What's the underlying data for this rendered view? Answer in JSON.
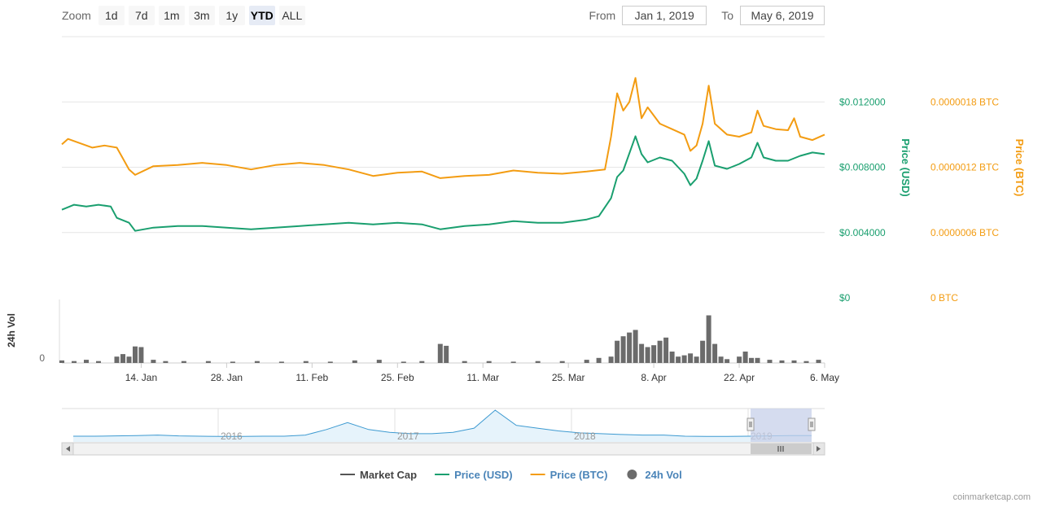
{
  "zoom": {
    "label": "Zoom",
    "buttons": [
      "1d",
      "7d",
      "1m",
      "3m",
      "1y",
      "YTD",
      "ALL"
    ],
    "active": "YTD"
  },
  "range": {
    "from_label": "From",
    "from_value": "Jan 1, 2019",
    "to_label": "To",
    "to_value": "May 6, 2019"
  },
  "credit": "coinmarketcap.com",
  "colors": {
    "usd": "#1a9f6f",
    "btc": "#f39c12",
    "volume": "#6b6b6b",
    "market_cap": "#555555",
    "navigator_line": "#3d9ad1"
  },
  "chart_data": {
    "type": "line",
    "x_axis": {
      "range": [
        "2019-01-01",
        "2019-05-06"
      ],
      "ticks": [
        {
          "date": "2019-01-14",
          "label": "14. Jan"
        },
        {
          "date": "2019-01-28",
          "label": "28. Jan"
        },
        {
          "date": "2019-02-11",
          "label": "11. Feb"
        },
        {
          "date": "2019-02-25",
          "label": "25. Feb"
        },
        {
          "date": "2019-03-11",
          "label": "11. Mar"
        },
        {
          "date": "2019-03-25",
          "label": "25. Mar"
        },
        {
          "date": "2019-04-08",
          "label": "8. Apr"
        },
        {
          "date": "2019-04-22",
          "label": "22. Apr"
        },
        {
          "date": "2019-05-06",
          "label": "6. May"
        }
      ]
    },
    "y_axis_usd": {
      "label": "Price (USD)",
      "range": [
        0,
        0.016
      ],
      "ticks": [
        {
          "value": 0,
          "label": "$0"
        },
        {
          "value": 0.004,
          "label": "$0.004000"
        },
        {
          "value": 0.008,
          "label": "$0.008000"
        },
        {
          "value": 0.012,
          "label": "$0.012000"
        }
      ]
    },
    "y_axis_btc": {
      "label": "Price (BTC)",
      "range": [
        0,
        2.4e-06
      ],
      "ticks": [
        {
          "value": 0,
          "label": "0 BTC"
        },
        {
          "value": 6e-07,
          "label": "0.0000006 BTC"
        },
        {
          "value": 1.2e-06,
          "label": "0.0000012 BTC"
        },
        {
          "value": 1.8e-06,
          "label": "0.0000018 BTC"
        }
      ]
    },
    "y_axis_volume": {
      "label": "24h Vol",
      "ticks": [
        {
          "value": 0,
          "label": "0"
        }
      ]
    },
    "series": [
      {
        "name": "Price (USD)",
        "axis": "usd",
        "points": [
          [
            "2019-01-01",
            0.0054
          ],
          [
            "2019-01-03",
            0.0057
          ],
          [
            "2019-01-05",
            0.0056
          ],
          [
            "2019-01-07",
            0.0057
          ],
          [
            "2019-01-09",
            0.0056
          ],
          [
            "2019-01-10",
            0.0049
          ],
          [
            "2019-01-12",
            0.0046
          ],
          [
            "2019-01-13",
            0.0041
          ],
          [
            "2019-01-16",
            0.0043
          ],
          [
            "2019-01-20",
            0.0044
          ],
          [
            "2019-01-24",
            0.0044
          ],
          [
            "2019-01-28",
            0.0043
          ],
          [
            "2019-02-01",
            0.0042
          ],
          [
            "2019-02-05",
            0.0043
          ],
          [
            "2019-02-09",
            0.0044
          ],
          [
            "2019-02-13",
            0.0045
          ],
          [
            "2019-02-17",
            0.0046
          ],
          [
            "2019-02-21",
            0.0045
          ],
          [
            "2019-02-25",
            0.0046
          ],
          [
            "2019-03-01",
            0.0045
          ],
          [
            "2019-03-04",
            0.0042
          ],
          [
            "2019-03-08",
            0.0044
          ],
          [
            "2019-03-12",
            0.0045
          ],
          [
            "2019-03-16",
            0.0047
          ],
          [
            "2019-03-20",
            0.0046
          ],
          [
            "2019-03-24",
            0.0046
          ],
          [
            "2019-03-28",
            0.0048
          ],
          [
            "2019-03-30",
            0.005
          ],
          [
            "2019-04-01",
            0.0061
          ],
          [
            "2019-04-02",
            0.0074
          ],
          [
            "2019-04-03",
            0.0078
          ],
          [
            "2019-04-05",
            0.0099
          ],
          [
            "2019-04-06",
            0.0088
          ],
          [
            "2019-04-07",
            0.0083
          ],
          [
            "2019-04-09",
            0.0086
          ],
          [
            "2019-04-11",
            0.0084
          ],
          [
            "2019-04-13",
            0.0076
          ],
          [
            "2019-04-14",
            0.0069
          ],
          [
            "2019-04-15",
            0.0073
          ],
          [
            "2019-04-16",
            0.0084
          ],
          [
            "2019-04-17",
            0.0096
          ],
          [
            "2019-04-18",
            0.0081
          ],
          [
            "2019-04-20",
            0.0079
          ],
          [
            "2019-04-22",
            0.0082
          ],
          [
            "2019-04-24",
            0.0086
          ],
          [
            "2019-04-25",
            0.0095
          ],
          [
            "2019-04-26",
            0.0086
          ],
          [
            "2019-04-28",
            0.0084
          ],
          [
            "2019-04-30",
            0.0084
          ],
          [
            "2019-05-02",
            0.0087
          ],
          [
            "2019-05-04",
            0.0089
          ],
          [
            "2019-05-06",
            0.0088
          ]
        ]
      },
      {
        "name": "Price (BTC)",
        "axis": "btc",
        "points": [
          [
            "2019-01-01",
            1.41e-06
          ],
          [
            "2019-01-02",
            1.46e-06
          ],
          [
            "2019-01-04",
            1.42e-06
          ],
          [
            "2019-01-06",
            1.38e-06
          ],
          [
            "2019-01-08",
            1.4e-06
          ],
          [
            "2019-01-10",
            1.38e-06
          ],
          [
            "2019-01-11",
            1.28e-06
          ],
          [
            "2019-01-12",
            1.18e-06
          ],
          [
            "2019-01-13",
            1.13e-06
          ],
          [
            "2019-01-16",
            1.21e-06
          ],
          [
            "2019-01-20",
            1.22e-06
          ],
          [
            "2019-01-24",
            1.24e-06
          ],
          [
            "2019-01-28",
            1.22e-06
          ],
          [
            "2019-02-01",
            1.18e-06
          ],
          [
            "2019-02-05",
            1.22e-06
          ],
          [
            "2019-02-09",
            1.24e-06
          ],
          [
            "2019-02-13",
            1.22e-06
          ],
          [
            "2019-02-17",
            1.18e-06
          ],
          [
            "2019-02-21",
            1.12e-06
          ],
          [
            "2019-02-25",
            1.15e-06
          ],
          [
            "2019-03-01",
            1.16e-06
          ],
          [
            "2019-03-04",
            1.1e-06
          ],
          [
            "2019-03-08",
            1.12e-06
          ],
          [
            "2019-03-12",
            1.13e-06
          ],
          [
            "2019-03-16",
            1.17e-06
          ],
          [
            "2019-03-20",
            1.15e-06
          ],
          [
            "2019-03-24",
            1.14e-06
          ],
          [
            "2019-03-28",
            1.16e-06
          ],
          [
            "2019-03-31",
            1.18e-06
          ],
          [
            "2019-04-01",
            1.48e-06
          ],
          [
            "2019-04-02",
            1.88e-06
          ],
          [
            "2019-04-03",
            1.72e-06
          ],
          [
            "2019-04-04",
            1.8e-06
          ],
          [
            "2019-04-05",
            2.02e-06
          ],
          [
            "2019-04-06",
            1.65e-06
          ],
          [
            "2019-04-07",
            1.75e-06
          ],
          [
            "2019-04-09",
            1.6e-06
          ],
          [
            "2019-04-11",
            1.55e-06
          ],
          [
            "2019-04-13",
            1.5e-06
          ],
          [
            "2019-04-14",
            1.35e-06
          ],
          [
            "2019-04-15",
            1.4e-06
          ],
          [
            "2019-04-16",
            1.6e-06
          ],
          [
            "2019-04-17",
            1.95e-06
          ],
          [
            "2019-04-18",
            1.6e-06
          ],
          [
            "2019-04-20",
            1.5e-06
          ],
          [
            "2019-04-22",
            1.48e-06
          ],
          [
            "2019-04-24",
            1.52e-06
          ],
          [
            "2019-04-25",
            1.72e-06
          ],
          [
            "2019-04-26",
            1.58e-06
          ],
          [
            "2019-04-28",
            1.55e-06
          ],
          [
            "2019-04-30",
            1.54e-06
          ],
          [
            "2019-05-01",
            1.65e-06
          ],
          [
            "2019-05-02",
            1.48e-06
          ],
          [
            "2019-05-04",
            1.45e-06
          ],
          [
            "2019-05-06",
            1.5e-06
          ]
        ]
      },
      {
        "name": "24h Vol",
        "type": "bar",
        "relative_height": true,
        "bars": [
          [
            "2019-01-01",
            0.04
          ],
          [
            "2019-01-03",
            0.03
          ],
          [
            "2019-01-05",
            0.05
          ],
          [
            "2019-01-07",
            0.03
          ],
          [
            "2019-01-10",
            0.1
          ],
          [
            "2019-01-11",
            0.14
          ],
          [
            "2019-01-12",
            0.1
          ],
          [
            "2019-01-13",
            0.26
          ],
          [
            "2019-01-14",
            0.25
          ],
          [
            "2019-01-16",
            0.05
          ],
          [
            "2019-01-18",
            0.03
          ],
          [
            "2019-01-21",
            0.03
          ],
          [
            "2019-01-25",
            0.03
          ],
          [
            "2019-01-29",
            0.02
          ],
          [
            "2019-02-02",
            0.03
          ],
          [
            "2019-02-06",
            0.02
          ],
          [
            "2019-02-10",
            0.03
          ],
          [
            "2019-02-14",
            0.02
          ],
          [
            "2019-02-18",
            0.04
          ],
          [
            "2019-02-22",
            0.05
          ],
          [
            "2019-02-26",
            0.02
          ],
          [
            "2019-03-01",
            0.03
          ],
          [
            "2019-03-04",
            0.3
          ],
          [
            "2019-03-05",
            0.27
          ],
          [
            "2019-03-08",
            0.03
          ],
          [
            "2019-03-12",
            0.03
          ],
          [
            "2019-03-16",
            0.02
          ],
          [
            "2019-03-20",
            0.03
          ],
          [
            "2019-03-24",
            0.03
          ],
          [
            "2019-03-28",
            0.05
          ],
          [
            "2019-03-30",
            0.08
          ],
          [
            "2019-04-01",
            0.1
          ],
          [
            "2019-04-02",
            0.35
          ],
          [
            "2019-04-03",
            0.42
          ],
          [
            "2019-04-04",
            0.48
          ],
          [
            "2019-04-05",
            0.52
          ],
          [
            "2019-04-06",
            0.3
          ],
          [
            "2019-04-07",
            0.25
          ],
          [
            "2019-04-08",
            0.28
          ],
          [
            "2019-04-09",
            0.35
          ],
          [
            "2019-04-10",
            0.4
          ],
          [
            "2019-04-11",
            0.18
          ],
          [
            "2019-04-12",
            0.1
          ],
          [
            "2019-04-13",
            0.12
          ],
          [
            "2019-04-14",
            0.15
          ],
          [
            "2019-04-15",
            0.1
          ],
          [
            "2019-04-16",
            0.35
          ],
          [
            "2019-04-17",
            0.75
          ],
          [
            "2019-04-18",
            0.3
          ],
          [
            "2019-04-19",
            0.1
          ],
          [
            "2019-04-20",
            0.06
          ],
          [
            "2019-04-22",
            0.1
          ],
          [
            "2019-04-23",
            0.18
          ],
          [
            "2019-04-24",
            0.08
          ],
          [
            "2019-04-25",
            0.08
          ],
          [
            "2019-04-27",
            0.05
          ],
          [
            "2019-04-29",
            0.04
          ],
          [
            "2019-05-01",
            0.04
          ],
          [
            "2019-05-03",
            0.03
          ],
          [
            "2019-05-05",
            0.05
          ]
        ]
      }
    ],
    "legend": {
      "position": "bottom-center",
      "items": [
        {
          "name": "Market Cap",
          "color": "#555555",
          "symbol": "line",
          "style": "dark"
        },
        {
          "name": "Price (USD)",
          "color": "#1a9f6f",
          "symbol": "line",
          "style": "blue"
        },
        {
          "name": "Price (BTC)",
          "color": "#f39c12",
          "symbol": "line",
          "style": "blue"
        },
        {
          "name": "24h Vol",
          "color": "#6b6b6b",
          "symbol": "circle",
          "style": "blue"
        }
      ]
    },
    "navigator": {
      "year_labels": [
        "2016",
        "2017",
        "2018",
        "2019"
      ],
      "selection": [
        "2019-01-01",
        "2019-05-06"
      ],
      "overview_relative_values": [
        0.06,
        0.06,
        0.07,
        0.08,
        0.1,
        0.07,
        0.06,
        0.05,
        0.05,
        0.06,
        0.06,
        0.1,
        0.3,
        0.55,
        0.3,
        0.2,
        0.15,
        0.15,
        0.2,
        0.35,
        1.0,
        0.45,
        0.35,
        0.25,
        0.18,
        0.15,
        0.12,
        0.1,
        0.1,
        0.06,
        0.05,
        0.05,
        0.06,
        0.07,
        0.08,
        0.08
      ]
    }
  }
}
